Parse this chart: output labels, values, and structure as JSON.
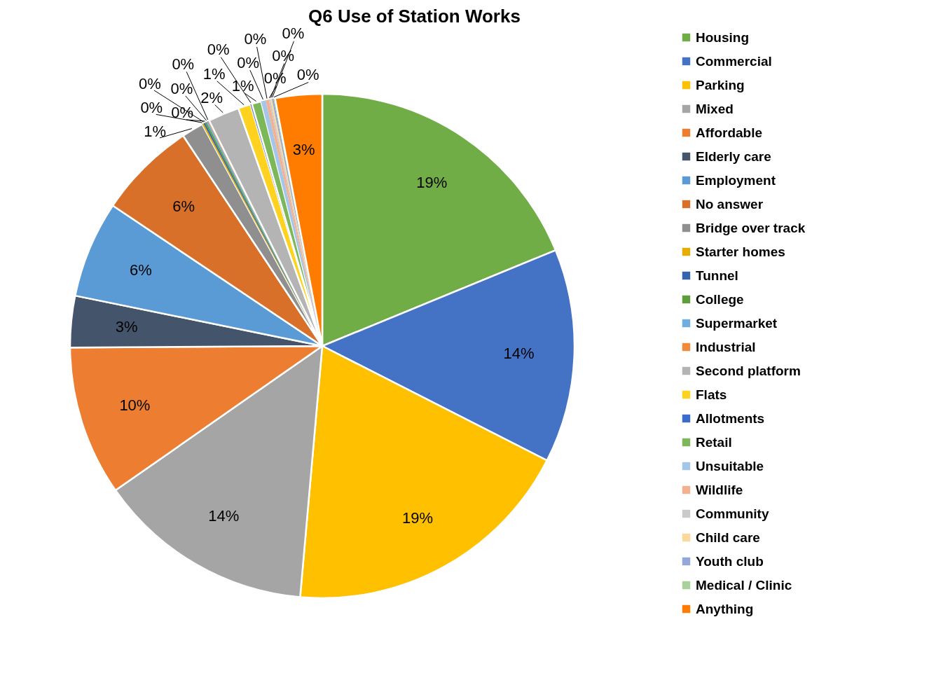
{
  "chart_data": {
    "type": "pie",
    "title": "Q6 Use of Station Works",
    "categories": [
      "Housing",
      "Commercial",
      "Parking",
      "Mixed",
      "Affordable",
      "Elderly care",
      "Employment",
      "No answer",
      "Bridge over track",
      "Starter homes",
      "Tunnel",
      "College",
      "Supermarket",
      "Industrial",
      "Second platform",
      "Flats",
      "Allotments",
      "Retail",
      "Unsuitable",
      "Wildlife",
      "Community",
      "Child care",
      "Youth club",
      "Medical / Clinic",
      "Anything"
    ],
    "values": [
      18.8,
      13.7,
      18.9,
      13.9,
      9.6,
      3.3,
      6.2,
      6.3,
      1.4,
      0.1,
      0.1,
      0.1,
      0.1,
      0.1,
      2.0,
      0.8,
      0.1,
      0.6,
      0.3,
      0.2,
      0.1,
      0.1,
      0.1,
      0.1,
      3.0
    ],
    "value_labels": [
      "19%",
      "14%",
      "19%",
      "14%",
      "10%",
      "3%",
      "6%",
      "6%",
      "1%",
      "0%",
      "0%",
      "0%",
      "0%",
      "0%",
      "2%",
      "1%",
      "0%",
      "1%",
      "0%",
      "0%",
      "0%",
      "0%",
      "0%",
      "0%",
      "3%"
    ],
    "colors": [
      "#70ad47",
      "#4472c4",
      "#ffc000",
      "#a5a5a5",
      "#ed7d31",
      "#44546a",
      "#5b9bd5",
      "#d9702a",
      "#8f8f8f",
      "#e6ad00",
      "#3563b0",
      "#5e9e3a",
      "#6faee0",
      "#f28a3c",
      "#b4b4b4",
      "#ffd21f",
      "#3b6ccc",
      "#7cb85a",
      "#a4c6e8",
      "#f4b08f",
      "#cacaca",
      "#fcd89a",
      "#93a7d8",
      "#a8d29a",
      "#ff7c00"
    ],
    "legend": "right"
  }
}
